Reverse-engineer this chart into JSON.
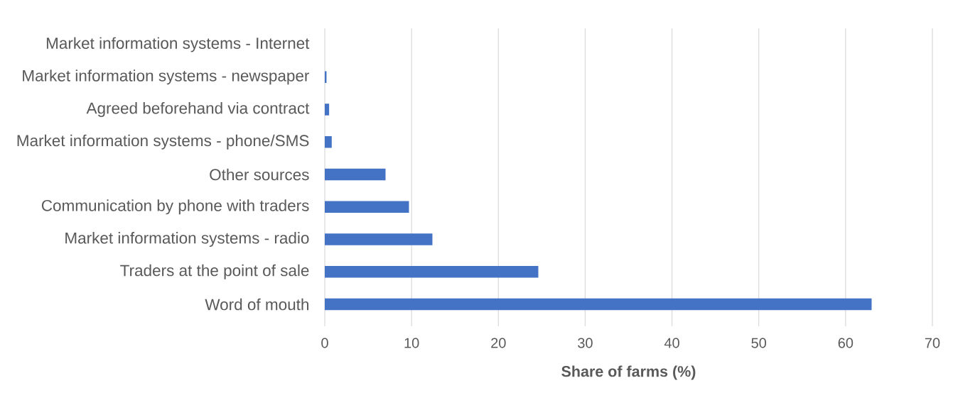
{
  "chart_data": {
    "type": "bar",
    "orientation": "horizontal",
    "xlabel": "Share of farms (%)",
    "categories": [
      "Market information systems - Internet",
      "Market information systems - newspaper",
      "Agreed beforehand via contract",
      "Market information systems - phone/SMS",
      "Other sources",
      "Communication by phone with traders",
      "Market information systems - radio",
      "Traders at the point of sale",
      "Word of mouth"
    ],
    "values": [
      0,
      0.2,
      0.5,
      0.8,
      7,
      9.7,
      12.4,
      24.6,
      63
    ],
    "color": "#4472c4",
    "xlim": [
      0,
      70
    ],
    "xticks": [
      0,
      10,
      20,
      30,
      40,
      50,
      60,
      70
    ],
    "grid": "x"
  }
}
